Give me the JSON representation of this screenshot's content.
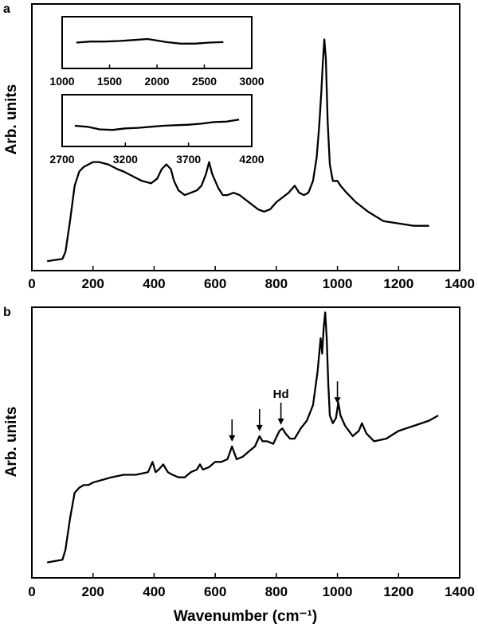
{
  "chart_data": [
    {
      "panel": "a",
      "type": "line",
      "xlabel": "",
      "ylabel": "Arb. units",
      "xlim": [
        0,
        1400
      ],
      "xticks": [
        0,
        200,
        400,
        600,
        800,
        1000,
        1200,
        1400
      ],
      "yticks_shown": false,
      "ylim": [
        0,
        100
      ],
      "series": [
        {
          "x": [
            50,
            100,
            110,
            125,
            140,
            155,
            170,
            185,
            200,
            220,
            250,
            280,
            300,
            330,
            360,
            390,
            410,
            425,
            440,
            455,
            465,
            480,
            500,
            520,
            540,
            555,
            570,
            580,
            590,
            600,
            610,
            625,
            640,
            660,
            680,
            700,
            720,
            740,
            760,
            780,
            800,
            820,
            840,
            860,
            875,
            890,
            905,
            920,
            932,
            940,
            947,
            952,
            957,
            962,
            968,
            975,
            985,
            1000,
            1010,
            1030,
            1060,
            1100,
            1150,
            1200,
            1250,
            1300
          ],
          "y": [
            1,
            2,
            5,
            18,
            33,
            39,
            41,
            42,
            43,
            43,
            42,
            40,
            39,
            37,
            35,
            34,
            36,
            40,
            42,
            40,
            35,
            31,
            29,
            30,
            31,
            33,
            38,
            43,
            38,
            35,
            32,
            29,
            29,
            30,
            29,
            27,
            25,
            23,
            22,
            23,
            26,
            28,
            30,
            33,
            30,
            29,
            30,
            35,
            45,
            58,
            72,
            85,
            95,
            87,
            60,
            42,
            35,
            35,
            33,
            30,
            26,
            22,
            18,
            17,
            16,
            16
          ]
        }
      ],
      "insets": [
        {
          "xlim": [
            1000,
            3000
          ],
          "xticks": [
            1000,
            1500,
            2000,
            2500,
            3000
          ],
          "x": [
            1150,
            1300,
            1450,
            1600,
            1750,
            1900,
            2000,
            2100,
            2250,
            2400,
            2550,
            2700
          ],
          "y": [
            50,
            52,
            52,
            53,
            55,
            57,
            54,
            51,
            48,
            48,
            50,
            51
          ]
        },
        {
          "xlim": [
            2700,
            4200
          ],
          "xticks": [
            2700,
            3200,
            3700,
            4200
          ],
          "x": [
            2800,
            2900,
            3000,
            3100,
            3200,
            3300,
            3400,
            3500,
            3600,
            3700,
            3800,
            3900,
            4000,
            4100
          ],
          "y": [
            40,
            38,
            33,
            32,
            35,
            36,
            38,
            40,
            41,
            42,
            44,
            47,
            48,
            52
          ]
        }
      ]
    },
    {
      "panel": "b",
      "type": "line",
      "xlabel": "Wavenumber (cm⁻¹)",
      "ylabel": "Arb. units",
      "xlim": [
        0,
        1400
      ],
      "xticks": [
        0,
        200,
        400,
        600,
        800,
        1000,
        1200,
        1400
      ],
      "yticks_shown": false,
      "ylim": [
        0,
        100
      ],
      "series": [
        {
          "x": [
            50,
            100,
            110,
            125,
            140,
            155,
            170,
            185,
            200,
            230,
            260,
            300,
            340,
            380,
            395,
            405,
            415,
            430,
            445,
            460,
            480,
            500,
            520,
            540,
            550,
            560,
            580,
            600,
            620,
            640,
            655,
            670,
            690,
            710,
            730,
            745,
            755,
            770,
            790,
            810,
            820,
            830,
            845,
            860,
            880,
            900,
            920,
            935,
            945,
            950,
            955,
            960,
            965,
            970,
            975,
            985,
            995,
            1003,
            1010,
            1025,
            1050,
            1070,
            1080,
            1095,
            1120,
            1160,
            1200,
            1250,
            1300,
            1330
          ],
          "y": [
            1,
            2,
            6,
            18,
            28,
            30,
            31,
            31,
            32,
            33,
            34,
            35,
            35,
            36,
            40,
            36,
            37,
            39,
            36,
            35,
            34,
            34,
            36,
            37,
            39,
            37,
            38,
            40,
            40,
            41,
            46,
            41,
            42,
            44,
            46,
            50,
            48,
            48,
            47,
            52,
            53,
            51,
            49,
            49,
            53,
            56,
            62,
            75,
            88,
            82,
            92,
            98,
            88,
            70,
            58,
            55,
            57,
            63,
            58,
            54,
            50,
            52,
            55,
            51,
            48,
            49,
            52,
            54,
            56,
            58
          ]
        }
      ],
      "annotations": [
        {
          "x": 655,
          "text": ""
        },
        {
          "x": 745,
          "text": ""
        },
        {
          "x": 815,
          "text": "Hd"
        },
        {
          "x": 1000,
          "text": ""
        }
      ]
    }
  ],
  "labels": {
    "panel_a": "a",
    "panel_b": "b",
    "ylabel_a": "Arb. units",
    "ylabel_b": "Arb. units",
    "xlabel_b": "Wavenumber (cm⁻¹)",
    "annotation_hd": "Hd"
  }
}
